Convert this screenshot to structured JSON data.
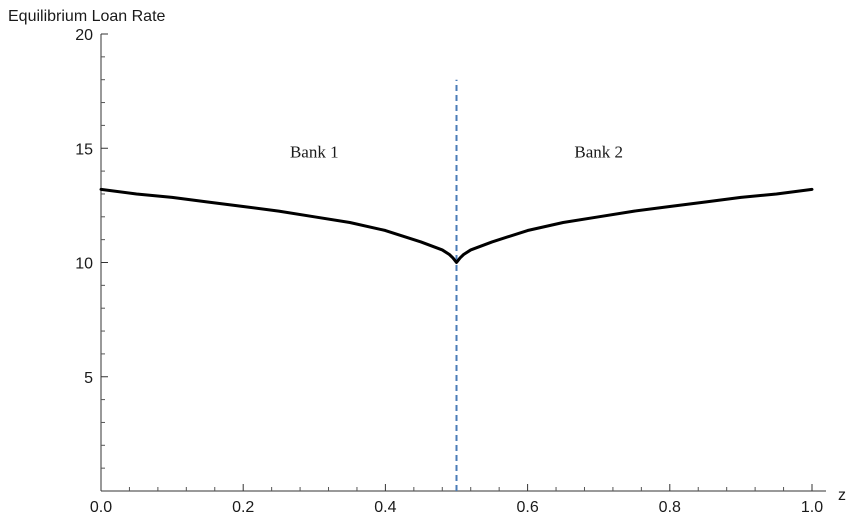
{
  "chart_data": {
    "type": "line",
    "title": "",
    "xlabel": "z",
    "ylabel": "Equilibrium Loan Rate",
    "xlim": [
      0,
      1
    ],
    "ylim": [
      0,
      20
    ],
    "x_ticks": [
      0.0,
      0.2,
      0.4,
      0.6,
      0.8,
      1.0
    ],
    "x_tick_labels": [
      "0.0",
      "0.2",
      "0.4",
      "0.6",
      "0.8",
      "1.0"
    ],
    "y_ticks": [
      5,
      10,
      15,
      20
    ],
    "y_tick_labels": [
      "5",
      "10",
      "15",
      "20"
    ],
    "grid": false,
    "series": [
      {
        "color": "#000000",
        "x": [
          0.0,
          0.05,
          0.1,
          0.15,
          0.2,
          0.25,
          0.3,
          0.35,
          0.4,
          0.45,
          0.48,
          0.49,
          0.495,
          0.5,
          0.505,
          0.51,
          0.52,
          0.55,
          0.6,
          0.65,
          0.7,
          0.75,
          0.8,
          0.85,
          0.9,
          0.95,
          1.0
        ],
        "y": [
          13.2,
          13.0,
          12.85,
          12.65,
          12.45,
          12.25,
          12.0,
          11.75,
          11.4,
          10.9,
          10.55,
          10.35,
          10.2,
          10.0,
          10.2,
          10.35,
          10.55,
          10.9,
          11.4,
          11.75,
          12.0,
          12.25,
          12.45,
          12.65,
          12.85,
          13.0,
          13.2
        ]
      }
    ],
    "vline": {
      "x": 0.5,
      "y_range": [
        0,
        18
      ],
      "style": "dashed",
      "color": "#4a7bb7"
    },
    "annotations": [
      {
        "text": "Bank 1",
        "x": 0.3,
        "y": 14.6
      },
      {
        "text": "Bank 2",
        "x": 0.7,
        "y": 14.6
      }
    ]
  }
}
